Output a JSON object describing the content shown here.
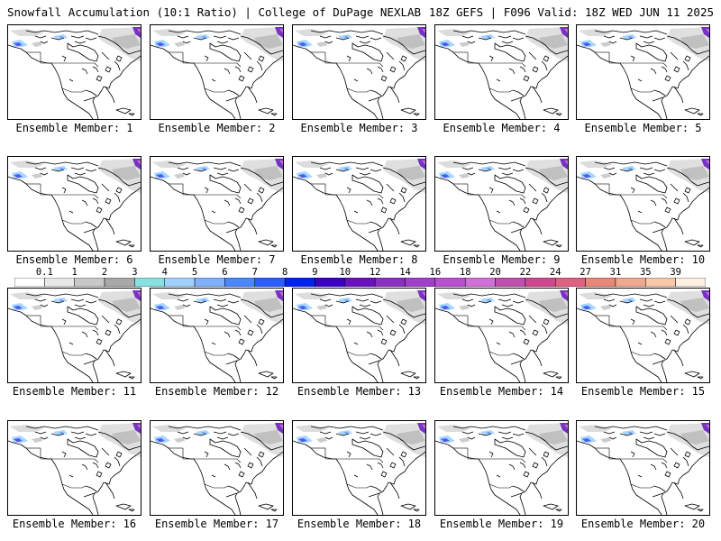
{
  "header": {
    "title": "Snowfall Accumulation (10:1 Ratio) | College of DuPage NEXLAB",
    "run_info": "18Z GEFS | F096 Valid: 18Z WED JUN 11 2025"
  },
  "members": [
    {
      "label": "Ensemble Member: 1"
    },
    {
      "label": "Ensemble Member: 2"
    },
    {
      "label": "Ensemble Member: 3"
    },
    {
      "label": "Ensemble Member: 4"
    },
    {
      "label": "Ensemble Member: 5"
    },
    {
      "label": "Ensemble Member: 6"
    },
    {
      "label": "Ensemble Member: 7"
    },
    {
      "label": "Ensemble Member: 8"
    },
    {
      "label": "Ensemble Member: 9"
    },
    {
      "label": "Ensemble Member: 10"
    },
    {
      "label": "Ensemble Member: 11"
    },
    {
      "label": "Ensemble Member: 12"
    },
    {
      "label": "Ensemble Member: 13"
    },
    {
      "label": "Ensemble Member: 14"
    },
    {
      "label": "Ensemble Member: 15"
    },
    {
      "label": "Ensemble Member: 16"
    },
    {
      "label": "Ensemble Member: 17"
    },
    {
      "label": "Ensemble Member: 18"
    },
    {
      "label": "Ensemble Member: 19"
    },
    {
      "label": "Ensemble Member: 20"
    }
  ],
  "colorbar": {
    "labels": [
      "0.1",
      "1",
      "2",
      "3",
      "4",
      "5",
      "6",
      "7",
      "8",
      "9",
      "10",
      "12",
      "14",
      "16",
      "18",
      "20",
      "22",
      "24",
      "27",
      "31",
      "35",
      "39"
    ],
    "colors": [
      "#ffffff",
      "#e8e8e8",
      "#c8c8c8",
      "#a8a8a8",
      "#88e0e0",
      "#a0d0ff",
      "#80b0ff",
      "#4a88ff",
      "#2a5cff",
      "#0022ee",
      "#3a00c8",
      "#6a10c0",
      "#8a30c0",
      "#a040c8",
      "#b850d0",
      "#d070d8",
      "#c050b0",
      "#d04890",
      "#e06080",
      "#e88878",
      "#f0a890",
      "#f8c8a8",
      "#fff0e0"
    ]
  }
}
